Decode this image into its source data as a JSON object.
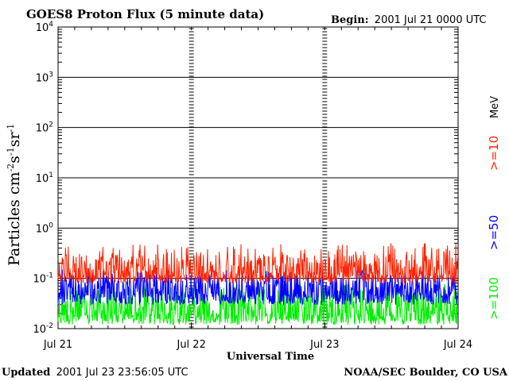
{
  "chart_data": {
    "type": "line",
    "title": "GOES8 Proton Flux (5 minute data)",
    "begin_label": "Begin:",
    "begin_value": "2001 Jul 21 0000 UTC",
    "xlabel": "Universal Time",
    "ylabel": {
      "base": "Particles cm",
      "exp1": "-2",
      "mid1": "s",
      "exp2": "-1",
      "mid2": "sr",
      "exp3": "-1"
    },
    "y_scale": "log",
    "ylim": [
      0.01,
      10000
    ],
    "y_ticks": [
      {
        "base": "10",
        "exp": "-2",
        "value": 0.01
      },
      {
        "base": "10",
        "exp": "-1",
        "value": 0.1
      },
      {
        "base": "10",
        "exp": "0",
        "value": 1
      },
      {
        "base": "10",
        "exp": "1",
        "value": 10
      },
      {
        "base": "10",
        "exp": "2",
        "value": 100
      },
      {
        "base": "10",
        "exp": "3",
        "value": 1000
      },
      {
        "base": "10",
        "exp": "4",
        "value": 10000
      }
    ],
    "x_range_days": [
      0,
      3
    ],
    "x_ticks": [
      {
        "label": "Jul 21",
        "day": 0
      },
      {
        "label": "Jul 22",
        "day": 1
      },
      {
        "label": "Jul 23",
        "day": 2
      },
      {
        "label": "Jul 24",
        "day": 3
      }
    ],
    "grid": true,
    "unit_label": "MeV",
    "series": [
      {
        "name": ">=10",
        "color": "#ff2200",
        "baseline": 0.12,
        "typical_range": [
          0.08,
          0.3
        ],
        "peak": 0.5
      },
      {
        "name": ">=50",
        "color": "#0000ff",
        "baseline": 0.05,
        "typical_range": [
          0.03,
          0.12
        ],
        "peak": 0.15
      },
      {
        "name": ">=100",
        "color": "#00ee00",
        "baseline": 0.02,
        "typical_range": [
          0.012,
          0.06
        ],
        "peak": 0.08
      }
    ]
  },
  "footer": {
    "updated_label": "Updated",
    "updated_value": "2001 Jul 23 23:56:05 UTC",
    "credit": "NOAA/SEC Boulder, CO USA"
  }
}
